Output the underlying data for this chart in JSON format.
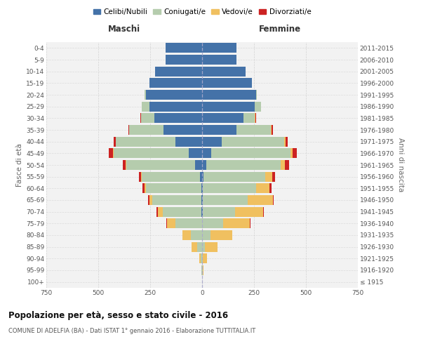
{
  "age_groups": [
    "100+",
    "95-99",
    "90-94",
    "85-89",
    "80-84",
    "75-79",
    "70-74",
    "65-69",
    "60-64",
    "55-59",
    "50-54",
    "45-49",
    "40-44",
    "35-39",
    "30-34",
    "25-29",
    "20-24",
    "15-19",
    "10-14",
    "5-9",
    "0-4"
  ],
  "birth_years": [
    "≤ 1915",
    "1916-1920",
    "1921-1925",
    "1926-1930",
    "1931-1935",
    "1936-1940",
    "1941-1945",
    "1946-1950",
    "1951-1955",
    "1956-1960",
    "1961-1965",
    "1966-1970",
    "1971-1975",
    "1976-1980",
    "1981-1985",
    "1986-1990",
    "1991-1995",
    "1996-2000",
    "2001-2005",
    "2006-2010",
    "2011-2015"
  ],
  "male": {
    "celibi": [
      0,
      0,
      0,
      0,
      0,
      0,
      3,
      5,
      5,
      10,
      35,
      65,
      130,
      185,
      230,
      255,
      270,
      255,
      225,
      175,
      175
    ],
    "coniugati": [
      0,
      2,
      8,
      25,
      55,
      130,
      185,
      235,
      265,
      280,
      330,
      360,
      285,
      165,
      65,
      35,
      8,
      0,
      0,
      0,
      0
    ],
    "vedovi": [
      0,
      2,
      5,
      25,
      40,
      40,
      25,
      15,
      8,
      5,
      3,
      3,
      0,
      0,
      0,
      0,
      0,
      0,
      0,
      0,
      0
    ],
    "divorziati": [
      0,
      0,
      0,
      0,
      0,
      3,
      5,
      5,
      8,
      10,
      15,
      20,
      10,
      5,
      2,
      2,
      0,
      0,
      0,
      0,
      0
    ]
  },
  "female": {
    "nubili": [
      0,
      0,
      0,
      0,
      0,
      0,
      3,
      5,
      5,
      8,
      20,
      45,
      95,
      165,
      200,
      255,
      260,
      240,
      210,
      165,
      165
    ],
    "coniugate": [
      0,
      2,
      5,
      15,
      40,
      100,
      155,
      215,
      255,
      295,
      360,
      380,
      300,
      165,
      55,
      30,
      5,
      0,
      0,
      0,
      0
    ],
    "vedove": [
      0,
      5,
      20,
      60,
      105,
      130,
      135,
      120,
      65,
      35,
      20,
      10,
      8,
      5,
      3,
      0,
      0,
      0,
      0,
      0,
      0
    ],
    "divorziate": [
      0,
      0,
      0,
      0,
      0,
      3,
      5,
      5,
      8,
      15,
      20,
      20,
      10,
      5,
      3,
      0,
      0,
      0,
      0,
      0,
      0
    ]
  },
  "colors": {
    "celibi_nubili": "#4472a8",
    "coniugati": "#b5ccad",
    "vedovi": "#f0c060",
    "divorziati": "#cc2222"
  },
  "title": "Popolazione per età, sesso e stato civile - 2016",
  "subtitle": "COMUNE DI ADELFIA (BA) - Dati ISTAT 1° gennaio 2016 - Elaborazione TUTTITALIA.IT",
  "xlabel_left": "Maschi",
  "xlabel_right": "Femmine",
  "ylabel_left": "Fasce di età",
  "ylabel_right": "Anni di nascita",
  "xlim": 750,
  "bg_color": "#ffffff",
  "grid_color": "#cccccc",
  "legend_labels": [
    "Celibi/Nubili",
    "Coniugati/e",
    "Vedovi/e",
    "Divorziati/e"
  ]
}
